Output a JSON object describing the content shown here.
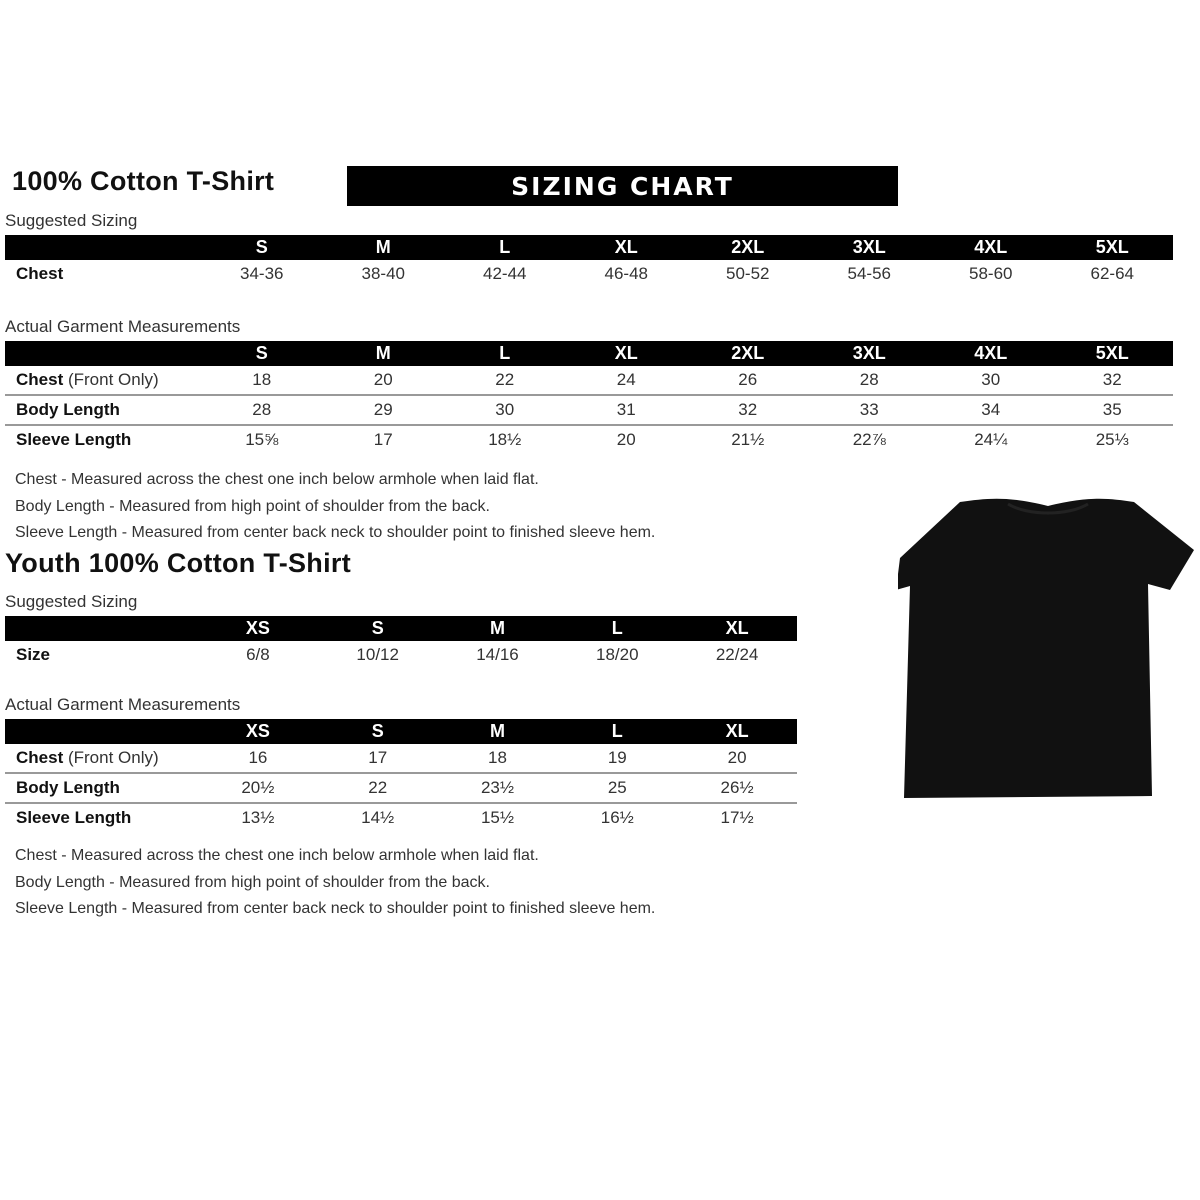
{
  "adult": {
    "title": "100% Cotton T-Shirt",
    "banner": "SIZING CHART",
    "suggested_label": "Suggested Sizing",
    "sizes": [
      "S",
      "M",
      "L",
      "XL",
      "2XL",
      "3XL",
      "4XL",
      "5XL"
    ],
    "suggested_rows": [
      {
        "label": "Chest",
        "values": [
          "34-36",
          "38-40",
          "42-44",
          "46-48",
          "50-52",
          "54-56",
          "58-60",
          "62-64"
        ]
      }
    ],
    "actual_label": "Actual Garment Measurements",
    "actual_rows": [
      {
        "label": "Chest",
        "label_suffix": " (Front Only)",
        "values": [
          "18",
          "20",
          "22",
          "24",
          "26",
          "28",
          "30",
          "32"
        ]
      },
      {
        "label": "Body Length",
        "values": [
          "28",
          "29",
          "30",
          "31",
          "32",
          "33",
          "34",
          "35"
        ]
      },
      {
        "label": "Sleeve Length",
        "values": [
          "15⅝",
          "17",
          "18½",
          "20",
          "21½",
          "22⅞",
          "24¼",
          "25⅓"
        ]
      }
    ],
    "notes": [
      "Chest - Measured across the chest one inch below armhole when laid flat.",
      "Body Length - Measured from high point of shoulder from the back.",
      "Sleeve Length - Measured from center back neck to shoulder point to finished sleeve hem."
    ]
  },
  "youth": {
    "title": "Youth 100% Cotton T-Shirt",
    "suggested_label": "Suggested Sizing",
    "sizes": [
      "XS",
      "S",
      "M",
      "L",
      "XL"
    ],
    "suggested_rows": [
      {
        "label": "Size",
        "values": [
          "6/8",
          "10/12",
          "14/16",
          "18/20",
          "22/24"
        ]
      }
    ],
    "actual_label": "Actual Garment Measurements",
    "actual_rows": [
      {
        "label": "Chest",
        "label_suffix": " (Front Only)",
        "values": [
          "16",
          "17",
          "18",
          "19",
          "20"
        ]
      },
      {
        "label": "Body Length",
        "values": [
          "20½",
          "22",
          "23½",
          "25",
          "26½"
        ]
      },
      {
        "label": "Sleeve Length",
        "values": [
          "13½",
          "14½",
          "15½",
          "16½",
          "17½"
        ]
      }
    ],
    "notes": [
      "Chest - Measured across the chest one inch below armhole when laid flat.",
      "Body Length - Measured from high point of shoulder from the back.",
      "Sleeve Length - Measured from center back neck to shoulder point to finished sleeve hem."
    ]
  },
  "image": {
    "icon": "black-tshirt-icon",
    "color": "#111111"
  }
}
